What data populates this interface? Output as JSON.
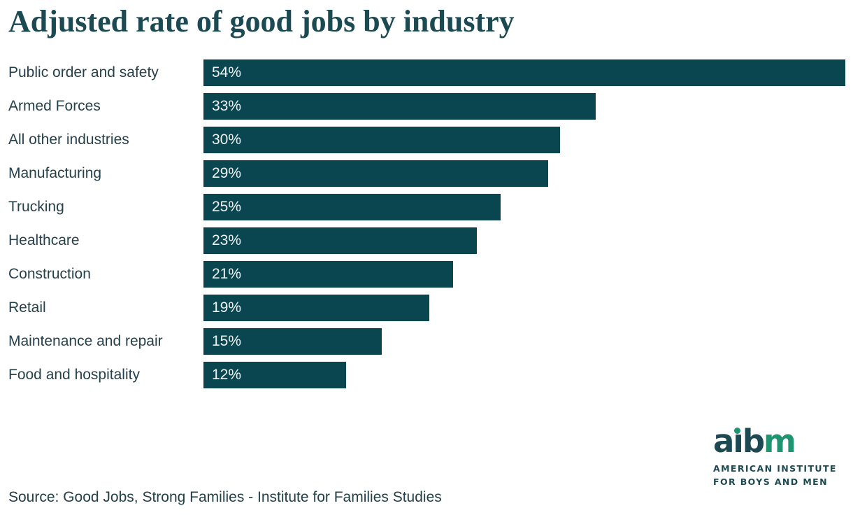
{
  "chart_data": {
    "type": "bar",
    "orientation": "horizontal",
    "title": "Adjusted rate of good jobs by industry",
    "categories": [
      "Public order and safety",
      "Armed Forces",
      "All other industries",
      "Manufacturing",
      "Trucking",
      "Healthcare",
      "Construction",
      "Retail",
      "Maintenance and repair",
      "Food and hospitality"
    ],
    "values": [
      54,
      33,
      30,
      29,
      25,
      23,
      21,
      19,
      15,
      12
    ],
    "value_labels": [
      "54%",
      "33%",
      "30%",
      "29%",
      "25%",
      "23%",
      "21%",
      "19%",
      "15%",
      "12%"
    ],
    "xlim": [
      0,
      54
    ],
    "unit": "%",
    "grid": false,
    "legend": false,
    "bar_color": "#0a4650",
    "value_label_color": "#eef3f3",
    "category_label_color": "#25414b",
    "title_color": "#1c4a52",
    "source": "Source: Good Jobs, Strong Families - Institute for Families Studies"
  },
  "logo": {
    "word": "aibm",
    "letter_colors": [
      "#1d4a52",
      "#1d4a52",
      "#1d4a52",
      "#1f9471"
    ],
    "dot_color": "#1f9471",
    "line1": "AMERICAN INSTITUTE",
    "line2": "FOR BOYS AND MEN"
  }
}
